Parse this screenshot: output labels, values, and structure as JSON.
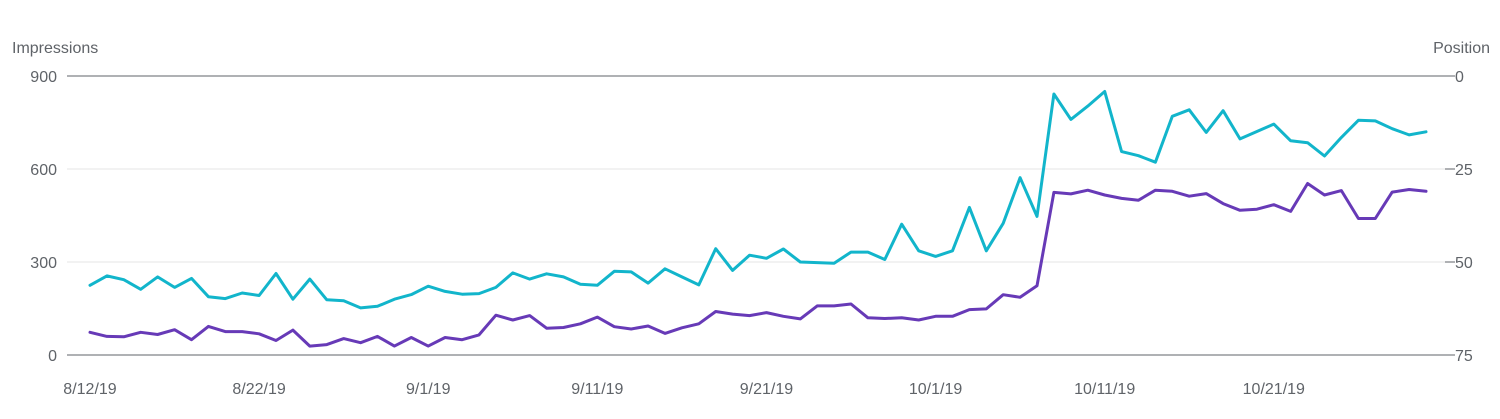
{
  "chart_data": {
    "type": "line",
    "left_axis_title": "Impressions",
    "right_axis_title": "Position",
    "left_axis": {
      "ticks": [
        0,
        300,
        600,
        900
      ],
      "range": [
        0,
        900
      ]
    },
    "right_axis": {
      "ticks": [
        0,
        25,
        50,
        75
      ],
      "range": [
        0,
        75
      ],
      "inverted": true
    },
    "x_axis": {
      "start_date": "2019-08-12",
      "end_date": "2019-10-30",
      "tick_labels": [
        "8/12/19",
        "8/22/19",
        "9/1/19",
        "9/11/19",
        "9/21/19",
        "10/1/19",
        "10/11/19",
        "10/21/19"
      ]
    },
    "grid": true,
    "colors": {
      "impressions": "#12b5cb",
      "position": "#673ab7",
      "text": "#5f6368",
      "grid": "#e6e6e6"
    },
    "series": [
      {
        "key": "impressions",
        "axis": "left",
        "values": [
          225,
          255,
          243,
          212,
          252,
          218,
          247,
          188,
          182,
          200,
          192,
          263,
          180,
          245,
          178,
          175,
          152,
          157,
          180,
          195,
          222,
          205,
          196,
          198,
          218,
          265,
          245,
          262,
          252,
          228,
          225,
          270,
          268,
          232,
          278,
          252,
          226,
          343,
          273,
          322,
          312,
          342,
          300,
          298,
          296,
          332,
          332,
          308,
          422,
          336,
          318,
          336,
          476,
          336,
          425,
          572,
          447,
          842,
          760,
          803,
          850,
          656,
          643,
          622,
          770,
          791,
          718,
          788,
          697,
          721,
          745,
          691,
          685,
          642,
          702,
          757,
          755,
          730,
          710,
          720
        ]
      },
      {
        "key": "position",
        "axis": "right",
        "values": [
          68.9,
          70.0,
          70.1,
          68.9,
          69.5,
          68.2,
          70.9,
          67.3,
          68.7,
          68.7,
          69.3,
          71.1,
          68.3,
          72.6,
          72.2,
          70.6,
          71.7,
          70.0,
          72.6,
          70.3,
          72.6,
          70.3,
          70.9,
          69.6,
          64.3,
          65.6,
          64.4,
          67.8,
          67.6,
          66.6,
          64.8,
          67.4,
          68.0,
          67.2,
          69.2,
          67.7,
          66.6,
          63.3,
          64.0,
          64.4,
          63.6,
          64.6,
          65.3,
          61.8,
          61.8,
          61.3,
          65.0,
          65.2,
          65.0,
          65.6,
          64.6,
          64.6,
          62.8,
          62.6,
          58.8,
          59.5,
          56.4,
          31.3,
          31.7,
          30.7,
          32.0,
          32.9,
          33.4,
          30.7,
          31.0,
          32.3,
          31.6,
          34.3,
          36.1,
          35.8,
          34.6,
          36.4,
          28.9,
          32.0,
          30.8,
          38.3,
          38.3,
          31.2,
          30.5,
          31.0
        ]
      }
    ]
  }
}
